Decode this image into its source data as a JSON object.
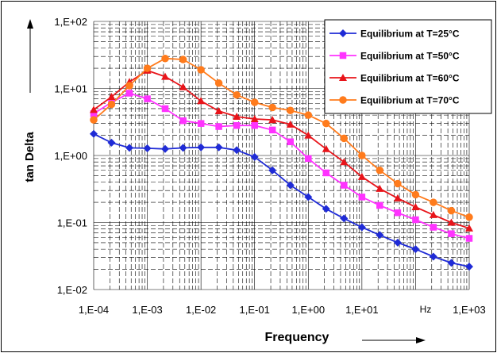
{
  "chart_data": {
    "type": "line",
    "xlabel": "Frequency",
    "ylabel": "tan Delta",
    "x_unit_label": "Hz",
    "x_scale": "log",
    "y_scale": "log",
    "xlim": [
      0.0001,
      1000
    ],
    "ylim": [
      0.01,
      100
    ],
    "x_tick_labels": [
      "1,E-04",
      "1,E-03",
      "1,E-02",
      "1,E-01",
      "1,E+00",
      "1,E+01",
      "1,E+03"
    ],
    "y_tick_labels": [
      "1,E+02",
      "1,E+01",
      "1,E+00",
      "1,E-01",
      "1,E-02"
    ],
    "grid": true,
    "legend_position": "top-right",
    "series": [
      {
        "name": "Equilibrium at T=25°C",
        "color": "#1f2bd6",
        "marker": "diamond",
        "x": [
          0.0001,
          0.000215,
          0.000464,
          0.001,
          0.00215,
          0.00464,
          0.01,
          0.0215,
          0.0464,
          0.1,
          0.215,
          0.464,
          1,
          2.15,
          4.64,
          10,
          21.5,
          46.4,
          100,
          215,
          464,
          1000
        ],
        "y": [
          2.1,
          1.55,
          1.3,
          1.28,
          1.25,
          1.3,
          1.32,
          1.32,
          1.2,
          0.95,
          0.6,
          0.36,
          0.24,
          0.16,
          0.115,
          0.085,
          0.065,
          0.05,
          0.04,
          0.031,
          0.025,
          0.022
        ]
      },
      {
        "name": "Equilibrium at T=50°C",
        "color": "#ff33ff",
        "marker": "square",
        "x": [
          0.0001,
          0.000215,
          0.000464,
          0.001,
          0.00215,
          0.00464,
          0.01,
          0.0215,
          0.0464,
          0.1,
          0.215,
          0.464,
          1,
          2.15,
          4.64,
          10,
          21.5,
          46.4,
          100,
          215,
          464,
          1000
        ],
        "y": [
          4.2,
          6.2,
          8.5,
          7.0,
          5.0,
          3.3,
          3.0,
          2.7,
          2.8,
          2.8,
          2.4,
          1.6,
          0.9,
          0.55,
          0.36,
          0.24,
          0.18,
          0.14,
          0.11,
          0.085,
          0.068,
          0.058
        ]
      },
      {
        "name": "Equilibrium at T=60°C",
        "color": "#e8141a",
        "marker": "triangle",
        "x": [
          0.0001,
          0.000215,
          0.000464,
          0.001,
          0.00215,
          0.00464,
          0.01,
          0.0215,
          0.0464,
          0.1,
          0.215,
          0.464,
          1,
          2.15,
          4.64,
          10,
          21.5,
          46.4,
          100,
          215,
          464,
          1000
        ],
        "y": [
          4.8,
          7.5,
          12.5,
          18.5,
          15.0,
          10.5,
          6.5,
          4.6,
          3.8,
          3.5,
          3.4,
          2.9,
          2.0,
          1.25,
          0.8,
          0.48,
          0.32,
          0.23,
          0.17,
          0.13,
          0.1,
          0.082
        ]
      },
      {
        "name": "Equilibrium at T=70°C",
        "color": "#ff7b1c",
        "marker": "circle",
        "x": [
          0.0001,
          0.000215,
          0.000464,
          0.001,
          0.00215,
          0.00464,
          0.01,
          0.0215,
          0.0464,
          0.1,
          0.215,
          0.464,
          1,
          2.15,
          4.64,
          10,
          21.5,
          46.4,
          100,
          215,
          464,
          1000
        ],
        "y": [
          3.4,
          5.8,
          11.0,
          20.0,
          28.0,
          27.0,
          19.0,
          12.0,
          8.0,
          6.2,
          5.2,
          4.7,
          4.0,
          3.0,
          1.8,
          1.0,
          0.6,
          0.38,
          0.26,
          0.2,
          0.15,
          0.12
        ]
      }
    ]
  }
}
